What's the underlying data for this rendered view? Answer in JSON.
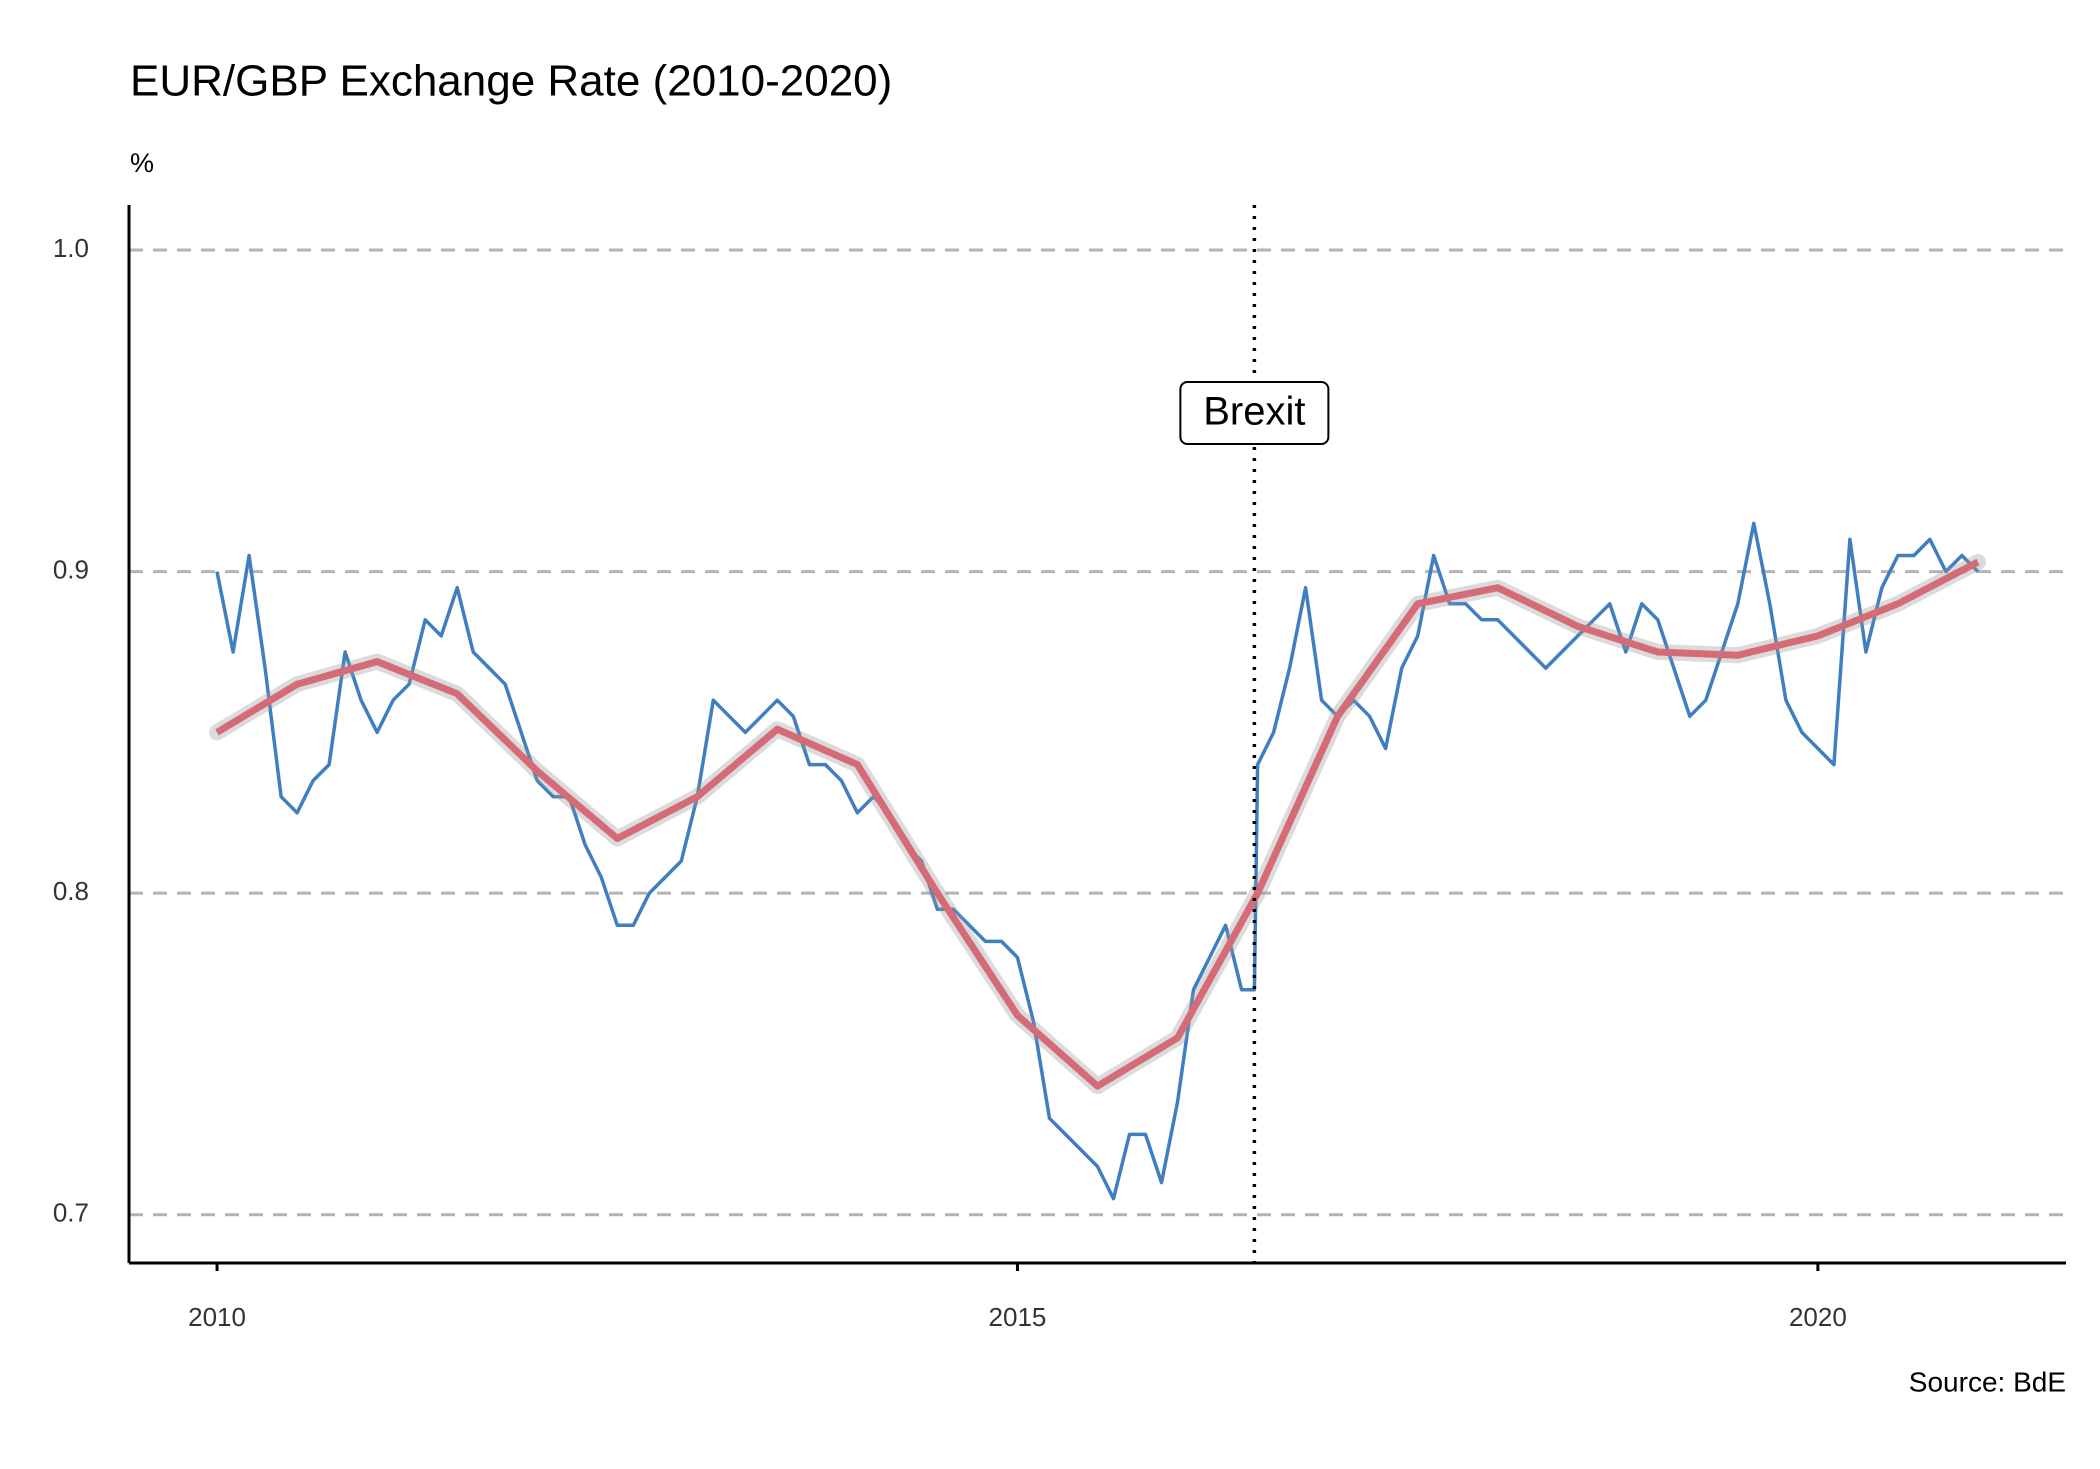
{
  "chart_data": {
    "type": "line",
    "title": "EUR/GBP Exchange Rate (2010-2020)",
    "y_label": "%",
    "caption": "Source: BdE",
    "annotation": {
      "text": "Brexit",
      "x": 2016.48
    },
    "xlim": [
      2009.45,
      2021.55
    ],
    "xticks": [
      2010,
      2015,
      2020
    ],
    "ylim": [
      0.685,
      1.014
    ],
    "yticks": [
      0.7,
      0.8,
      0.9,
      {
        "value": 1,
        "label": "1.0"
      }
    ],
    "grid": true,
    "series": [
      {
        "color": "#3f7fc0",
        "x": [
          2010.0,
          2010.1,
          2010.2,
          2010.3,
          2010.4,
          2010.5,
          2010.6,
          2010.7,
          2010.8,
          2010.9,
          2011.0,
          2011.1,
          2011.2,
          2011.3,
          2011.4,
          2011.5,
          2011.6,
          2011.7,
          2011.8,
          2011.9,
          2012.0,
          2012.1,
          2012.2,
          2012.3,
          2012.4,
          2012.5,
          2012.6,
          2012.7,
          2012.8,
          2012.9,
          2013.0,
          2013.1,
          2013.2,
          2013.3,
          2013.4,
          2013.5,
          2013.6,
          2013.7,
          2013.8,
          2013.9,
          2014.0,
          2014.1,
          2014.2,
          2014.3,
          2014.4,
          2014.5,
          2014.6,
          2014.7,
          2014.8,
          2014.9,
          2015.0,
          2015.1,
          2015.2,
          2015.3,
          2015.4,
          2015.5,
          2015.6,
          2015.7,
          2015.8,
          2015.9,
          2016.0,
          2016.1,
          2016.2,
          2016.3,
          2016.4,
          2016.48,
          2016.5,
          2016.6,
          2016.7,
          2016.8,
          2016.9,
          2017.0,
          2017.1,
          2017.2,
          2017.3,
          2017.4,
          2017.5,
          2017.6,
          2017.7,
          2017.8,
          2017.9,
          2018.0,
          2018.1,
          2018.2,
          2018.3,
          2018.4,
          2018.5,
          2018.6,
          2018.7,
          2018.8,
          2018.9,
          2019.0,
          2019.1,
          2019.2,
          2019.3,
          2019.4,
          2019.5,
          2019.6,
          2019.7,
          2019.8,
          2019.9,
          2020.0,
          2020.1,
          2020.2,
          2020.3,
          2020.4,
          2020.5,
          2020.6,
          2020.7,
          2020.8,
          2020.9,
          2021.0
        ],
        "values": [
          0.9,
          0.875,
          0.905,
          0.87,
          0.83,
          0.825,
          0.835,
          0.84,
          0.875,
          0.86,
          0.85,
          0.86,
          0.865,
          0.885,
          0.88,
          0.895,
          0.875,
          0.87,
          0.865,
          0.85,
          0.835,
          0.83,
          0.83,
          0.815,
          0.805,
          0.79,
          0.79,
          0.8,
          0.805,
          0.81,
          0.83,
          0.86,
          0.855,
          0.85,
          0.855,
          0.86,
          0.855,
          0.84,
          0.84,
          0.835,
          0.825,
          0.83,
          0.825,
          0.815,
          0.81,
          0.795,
          0.795,
          0.79,
          0.785,
          0.785,
          0.78,
          0.76,
          0.73,
          0.725,
          0.72,
          0.715,
          0.705,
          0.725,
          0.725,
          0.71,
          0.735,
          0.77,
          0.78,
          0.79,
          0.77,
          0.77,
          0.84,
          0.85,
          0.87,
          0.895,
          0.86,
          0.855,
          0.86,
          0.855,
          0.845,
          0.87,
          0.88,
          0.905,
          0.89,
          0.89,
          0.885,
          0.885,
          0.88,
          0.875,
          0.87,
          0.875,
          0.88,
          0.885,
          0.89,
          0.875,
          0.89,
          0.885,
          0.87,
          0.855,
          0.86,
          0.875,
          0.89,
          0.915,
          0.89,
          0.86,
          0.85,
          0.845,
          0.84,
          0.91,
          0.875,
          0.895,
          0.905,
          0.905,
          0.91,
          0.9,
          0.905,
          0.9
        ]
      },
      {
        "color": "#d66b78",
        "x": [
          2010.0,
          2010.5,
          2011.0,
          2011.5,
          2012.0,
          2012.5,
          2013.0,
          2013.5,
          2014.0,
          2014.5,
          2015.0,
          2015.5,
          2016.0,
          2016.5,
          2017.0,
          2017.5,
          2018.0,
          2018.5,
          2019.0,
          2019.5,
          2020.0,
          2020.5,
          2021.0
        ],
        "values": [
          0.85,
          0.865,
          0.872,
          0.862,
          0.838,
          0.817,
          0.83,
          0.851,
          0.84,
          0.8,
          0.762,
          0.74,
          0.755,
          0.8,
          0.855,
          0.89,
          0.895,
          0.883,
          0.875,
          0.874,
          0.88,
          0.89,
          0.903
        ]
      }
    ]
  }
}
